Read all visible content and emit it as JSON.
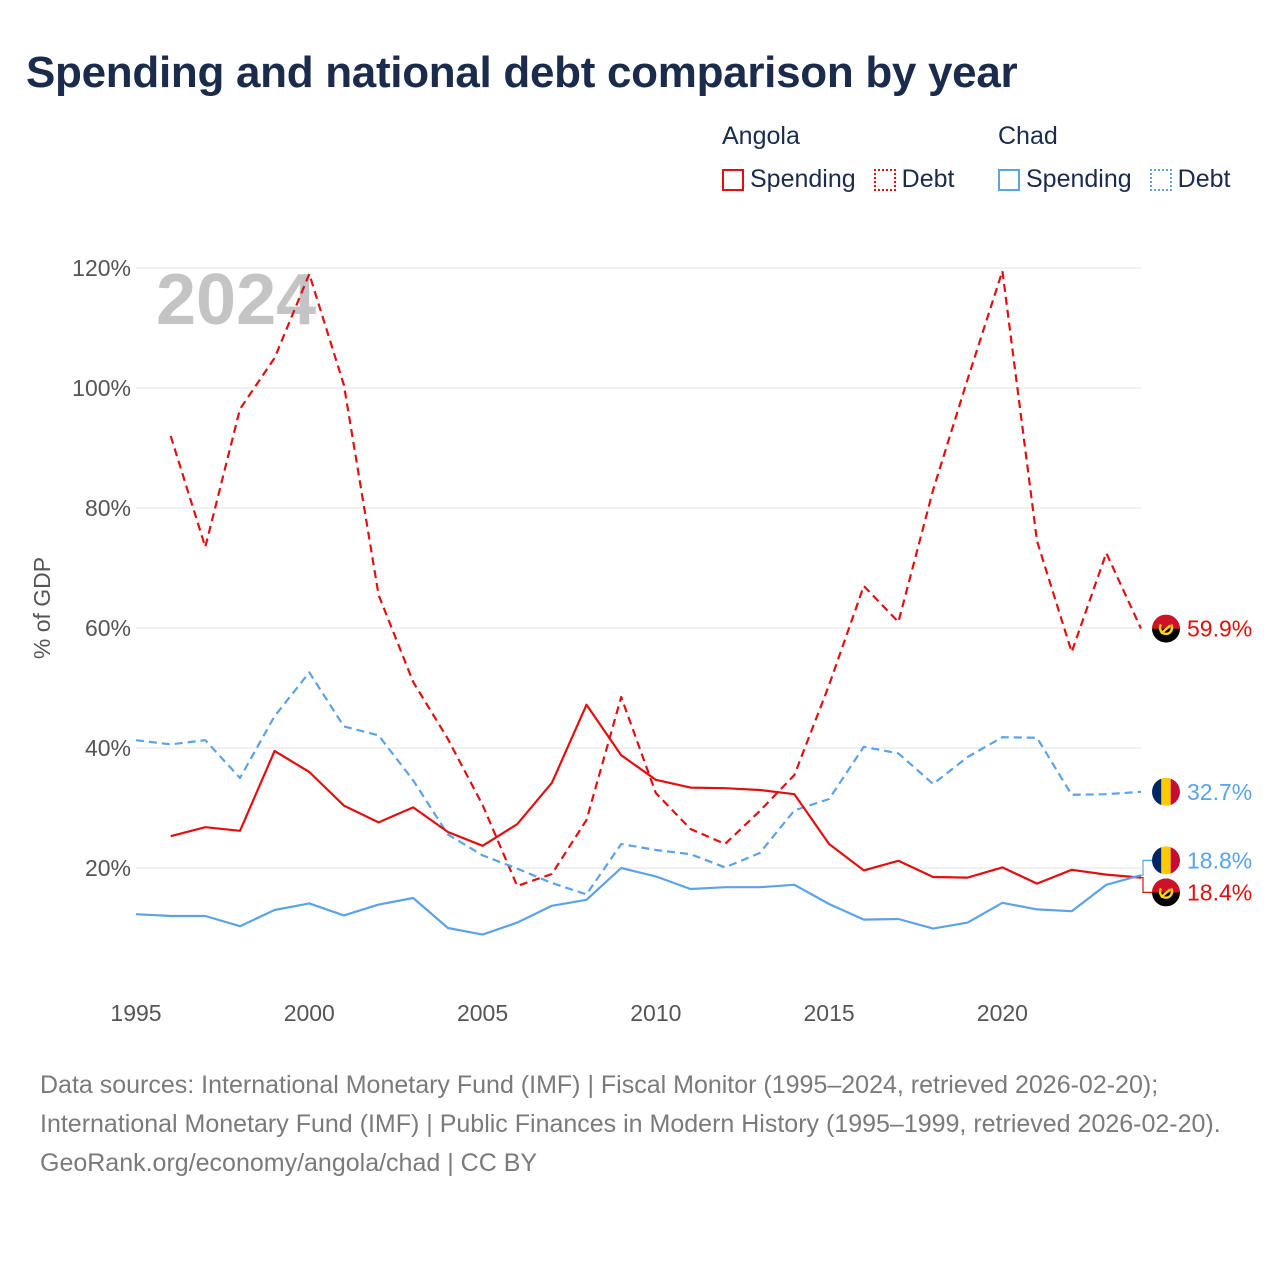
{
  "title": "Spending and national debt comparison by year",
  "legend": {
    "groups": [
      {
        "country": "Angola",
        "color": "#e01010",
        "items": [
          {
            "label": "Spending",
            "style": "solid"
          },
          {
            "label": "Debt",
            "style": "dotted"
          }
        ]
      },
      {
        "country": "Chad",
        "color": "#5ba3e6",
        "items": [
          {
            "label": "Spending",
            "style": "solid"
          },
          {
            "label": "Debt",
            "style": "dotted"
          }
        ]
      }
    ]
  },
  "chart_data": {
    "type": "line",
    "watermark_year": "2024",
    "ylabel": "% of GDP",
    "xlabel": "",
    "ylim": [
      0,
      120
    ],
    "xlim": [
      1995,
      2024
    ],
    "yticks": [
      20,
      40,
      60,
      80,
      100,
      120
    ],
    "ytick_labels": [
      "20%",
      "40%",
      "60%",
      "80%",
      "100%",
      "120%"
    ],
    "xticks": [
      1995,
      2000,
      2005,
      2010,
      2015,
      2020
    ],
    "xtick_labels": [
      "1995",
      "2000",
      "2005",
      "2010",
      "2015",
      "2020"
    ],
    "grid": true,
    "series": [
      {
        "name": "Angola Debt",
        "country": "Angola",
        "kind": "debt",
        "color": "#e01010",
        "dash": true,
        "x": [
          1996,
          1997,
          1998,
          1999,
          2000,
          2001,
          2002,
          2003,
          2004,
          2005,
          2006,
          2007,
          2008,
          2009,
          2010,
          2011,
          2012,
          2013,
          2014,
          2015,
          2016,
          2017,
          2018,
          2019,
          2020,
          2021,
          2022,
          2023,
          2024
        ],
        "values": [
          92,
          73.5,
          96.5,
          105,
          119,
          100.5,
          65.5,
          51,
          41.5,
          30.5,
          17,
          19,
          28,
          48.5,
          32.5,
          26.5,
          24,
          29.5,
          35.5,
          50.5,
          67,
          61,
          83,
          101.5,
          119.5,
          74.5,
          56,
          72.5,
          59.9
        ]
      },
      {
        "name": "Chad Debt",
        "country": "Chad",
        "kind": "debt",
        "color": "#5ba3e6",
        "dash": true,
        "x": [
          1995,
          1996,
          1997,
          1998,
          1999,
          2000,
          2001,
          2002,
          2003,
          2004,
          2005,
          2006,
          2007,
          2008,
          2009,
          2010,
          2011,
          2012,
          2013,
          2014,
          2015,
          2016,
          2017,
          2018,
          2019,
          2020,
          2021,
          2022,
          2023,
          2024
        ],
        "values": [
          41.3,
          40.6,
          41.3,
          35,
          45.3,
          52.6,
          43.6,
          42.1,
          34.6,
          25.6,
          22.1,
          19.9,
          17.5,
          15.6,
          24,
          23,
          22.3,
          20.1,
          22.5,
          29.6,
          31.5,
          40.2,
          39.1,
          34,
          38.5,
          41.8,
          41.7,
          32.2,
          32.3,
          32.7
        ]
      },
      {
        "name": "Angola Spending",
        "country": "Angola",
        "kind": "spending",
        "color": "#e01010",
        "dash": false,
        "x": [
          1996,
          1997,
          1998,
          1999,
          2000,
          2001,
          2002,
          2003,
          2004,
          2005,
          2006,
          2007,
          2008,
          2009,
          2010,
          2011,
          2012,
          2013,
          2014,
          2015,
          2016,
          2017,
          2018,
          2019,
          2020,
          2021,
          2022,
          2023,
          2024
        ],
        "values": [
          25.3,
          26.8,
          26.2,
          39.5,
          36,
          30.4,
          27.6,
          30.1,
          26,
          23.7,
          27.3,
          34.2,
          47.2,
          38.8,
          34.7,
          33.4,
          33.3,
          33,
          32.3,
          24,
          19.6,
          21.2,
          18.5,
          18.4,
          20.1,
          17.4,
          19.7,
          18.9,
          18.4
        ]
      },
      {
        "name": "Chad Spending",
        "country": "Chad",
        "kind": "spending",
        "color": "#5ba3e6",
        "dash": false,
        "x": [
          1995,
          1996,
          1997,
          1998,
          1999,
          2000,
          2001,
          2002,
          2003,
          2004,
          2005,
          2006,
          2007,
          2008,
          2009,
          2010,
          2011,
          2012,
          2013,
          2014,
          2015,
          2016,
          2017,
          2018,
          2019,
          2020,
          2021,
          2022,
          2023,
          2024
        ],
        "values": [
          12.3,
          12,
          12,
          10.3,
          13,
          14.1,
          12.1,
          13.9,
          15,
          10,
          8.9,
          10.9,
          13.7,
          14.7,
          20,
          18.6,
          16.5,
          16.8,
          16.8,
          17.2,
          14,
          11.4,
          11.5,
          9.9,
          10.9,
          14.2,
          13.1,
          12.8,
          17.2,
          18.8
        ]
      }
    ],
    "end_labels": [
      {
        "text": "59.9%",
        "country": "Angola",
        "value": 59.9,
        "color": "#e01010"
      },
      {
        "text": "32.7%",
        "country": "Chad",
        "value": 32.7,
        "color": "#5ba3e6"
      },
      {
        "text": "18.8%",
        "country": "Chad",
        "value": 18.8,
        "color": "#5ba3e6"
      },
      {
        "text": "18.4%",
        "country": "Angola",
        "value": 18.4,
        "color": "#e01010"
      }
    ]
  },
  "footer": {
    "sources": "Data sources: International Monetary Fund (IMF) | Fiscal Monitor (1995–2024, retrieved 2026-02-20); International Monetary Fund (IMF) | Public Finances in Modern History (1995–1999, retrieved 2026-02-20).",
    "credit": "GeoRank.org/economy/angola/chad | CC BY"
  }
}
